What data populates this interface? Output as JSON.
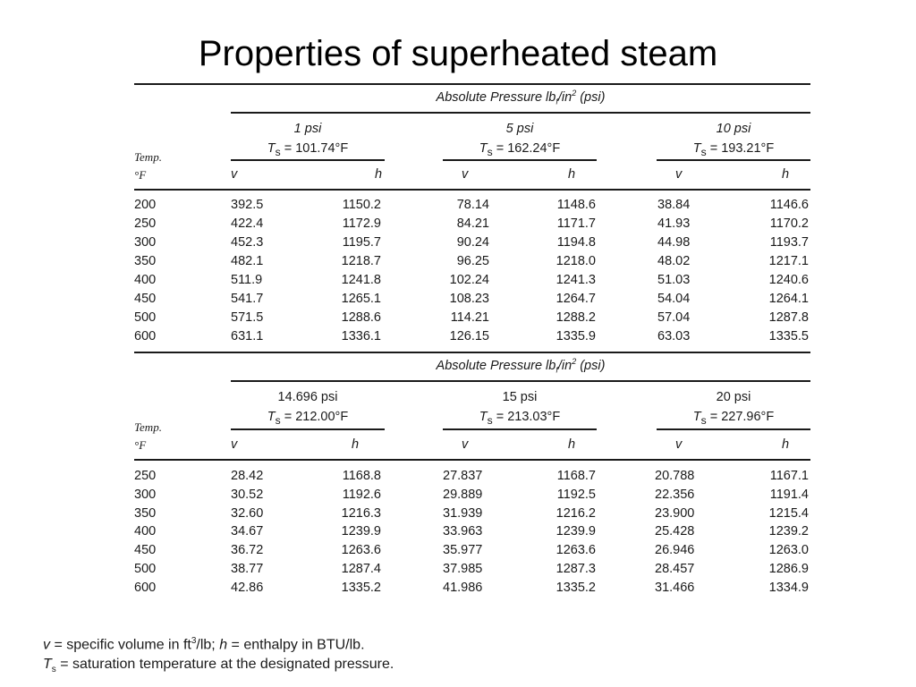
{
  "title": "Properties of superheated steam",
  "header_label": "Absolute Pressure lb",
  "header_sub": "f",
  "header_unit": "/in",
  "header_sup": "2",
  "header_tail": " (psi)",
  "temp_label_1": "Temp.",
  "temp_label_2": "°F",
  "col_v": "v",
  "col_h": "h",
  "ts_symbol": "T",
  "ts_sub": "s",
  "block1": {
    "pressures": [
      {
        "name": "1 psi",
        "ts": " = 101.74°F"
      },
      {
        "name": "5 psi",
        "ts": " = 162.24°F"
      },
      {
        "name": "10 psi",
        "ts": " = 193.21°F"
      }
    ],
    "rows": [
      [
        "200",
        "392.5",
        "1150.2",
        "78.14",
        "1148.6",
        "38.84",
        "1146.6"
      ],
      [
        "250",
        "422.4",
        "1172.9",
        "84.21",
        "1171.7",
        "41.93",
        "1170.2"
      ],
      [
        "300",
        "452.3",
        "1195.7",
        "90.24",
        "1194.8",
        "44.98",
        "1193.7"
      ],
      [
        "350",
        "482.1",
        "1218.7",
        "96.25",
        "1218.0",
        "48.02",
        "1217.1"
      ],
      [
        "400",
        "511.9",
        "1241.8",
        "102.24",
        "1241.3",
        "51.03",
        "1240.6"
      ],
      [
        "450",
        "541.7",
        "1265.1",
        "108.23",
        "1264.7",
        "54.04",
        "1264.1"
      ],
      [
        "500",
        "571.5",
        "1288.6",
        "114.21",
        "1288.2",
        "57.04",
        "1287.8"
      ],
      [
        "600",
        "631.1",
        "1336.1",
        "126.15",
        "1335.9",
        "63.03",
        "1335.5"
      ]
    ]
  },
  "block2": {
    "pressures": [
      {
        "name": "14.696 psi",
        "ts": " = 212.00°F"
      },
      {
        "name": "15 psi",
        "ts": " = 213.03°F"
      },
      {
        "name": "20 psi",
        "ts": " = 227.96°F"
      }
    ],
    "rows": [
      [
        "250",
        "28.42",
        "1168.8",
        "27.837",
        "1168.7",
        "20.788",
        "1167.1"
      ],
      [
        "300",
        "30.52",
        "1192.6",
        "29.889",
        "1192.5",
        "22.356",
        "1191.4"
      ],
      [
        "350",
        "32.60",
        "1216.3",
        "31.939",
        "1216.2",
        "23.900",
        "1215.4"
      ],
      [
        "400",
        "34.67",
        "1239.9",
        "33.963",
        "1239.9",
        "25.428",
        "1239.2"
      ],
      [
        "450",
        "36.72",
        "1263.6",
        "35.977",
        "1263.6",
        "26.946",
        "1263.0"
      ],
      [
        "500",
        "38.77",
        "1287.4",
        "37.985",
        "1287.3",
        "28.457",
        "1286.9"
      ],
      [
        "600",
        "42.86",
        "1335.2",
        "41.986",
        "1335.2",
        "31.466",
        "1334.9"
      ]
    ]
  },
  "footnote_1": {
    "v": "v",
    "a": " = specific volume in ft",
    "sup": "3",
    "b": "/lb; ",
    "h": "h",
    "c": " = enthalpy in BTU/lb."
  },
  "footnote_2": {
    "t": "T",
    "sub": "s",
    "a": " = saturation temperature at the designated pressure."
  }
}
